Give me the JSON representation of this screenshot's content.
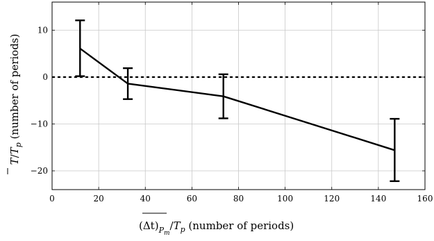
{
  "chart_data": {
    "type": "line",
    "title": "",
    "xlabel": {
      "prefix": "(Δt)",
      "sub": "P",
      "subsub": "m",
      "slash": "/",
      "T": "T",
      "p": "p",
      "suffix": " (number of periods)"
    },
    "ylabel": {
      "T": "T",
      "slash": "/",
      "T2": "T",
      "p": "p",
      "suffix": " (number of periods)"
    },
    "xlim": [
      0,
      160
    ],
    "ylim": [
      -24,
      16
    ],
    "xticks": [
      0,
      20,
      40,
      60,
      80,
      100,
      120,
      140,
      160
    ],
    "yticks": [
      -20,
      -10,
      0,
      10
    ],
    "grid": true,
    "reference_line": {
      "y": 0,
      "style": "dashed"
    },
    "series": [
      {
        "x": [
          12,
          32.5,
          73.5,
          147
        ],
        "y": [
          6.1,
          -1.4,
          -4.1,
          -15.6
        ],
        "err_low": [
          0.2,
          -4.7,
          -8.8,
          -22.2
        ],
        "err_high": [
          12.1,
          1.9,
          0.6,
          -8.9
        ]
      }
    ]
  }
}
